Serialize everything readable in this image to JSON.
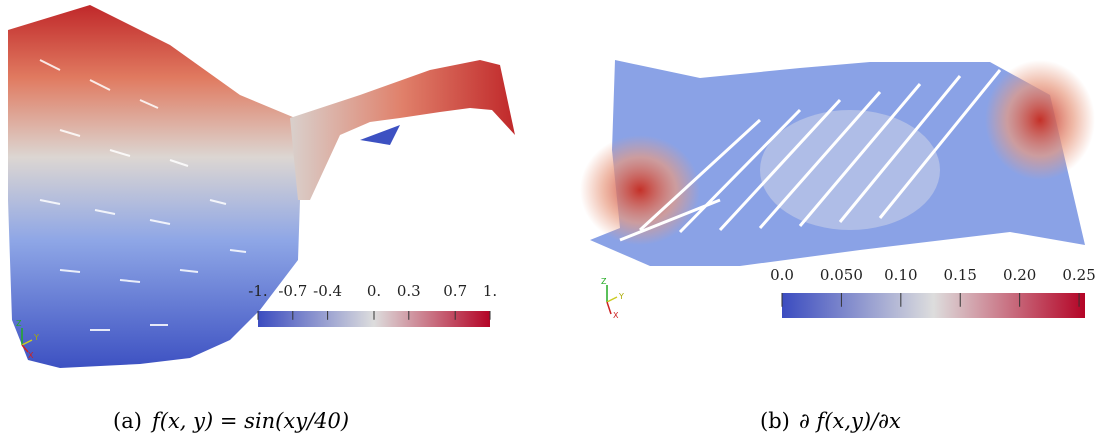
{
  "panels": [
    {
      "caption": {
        "label": "(a)",
        "formula": "f(x, y) = sin(xy/40)"
      },
      "triad": [
        "Z",
        "Y",
        "X"
      ],
      "colorbar": {
        "range": [
          -1,
          1
        ],
        "ticks": [
          {
            "value": -1,
            "label": "-1."
          },
          {
            "value": -0.7,
            "label": "-0.7"
          },
          {
            "value": -0.4,
            "label": "-0.4"
          },
          {
            "value": 0,
            "label": "0."
          },
          {
            "value": 0.3,
            "label": "0.3"
          },
          {
            "value": 0.7,
            "label": "0.7"
          },
          {
            "value": 1,
            "label": "1."
          }
        ]
      }
    },
    {
      "caption": {
        "label": "(b)",
        "formula": "∂ f(x,y)/∂x"
      },
      "triad": [
        "Z",
        "Y",
        "X"
      ],
      "colorbar": {
        "range": [
          0,
          0.255
        ],
        "ticks": [
          {
            "value": 0,
            "label": "0.0"
          },
          {
            "value": 0.05,
            "label": "0.050"
          },
          {
            "value": 0.1,
            "label": "0.10"
          },
          {
            "value": 0.15,
            "label": "0.15"
          },
          {
            "value": 0.2,
            "label": "0.20"
          },
          {
            "value": 0.25,
            "label": "0.25"
          }
        ]
      }
    }
  ]
}
